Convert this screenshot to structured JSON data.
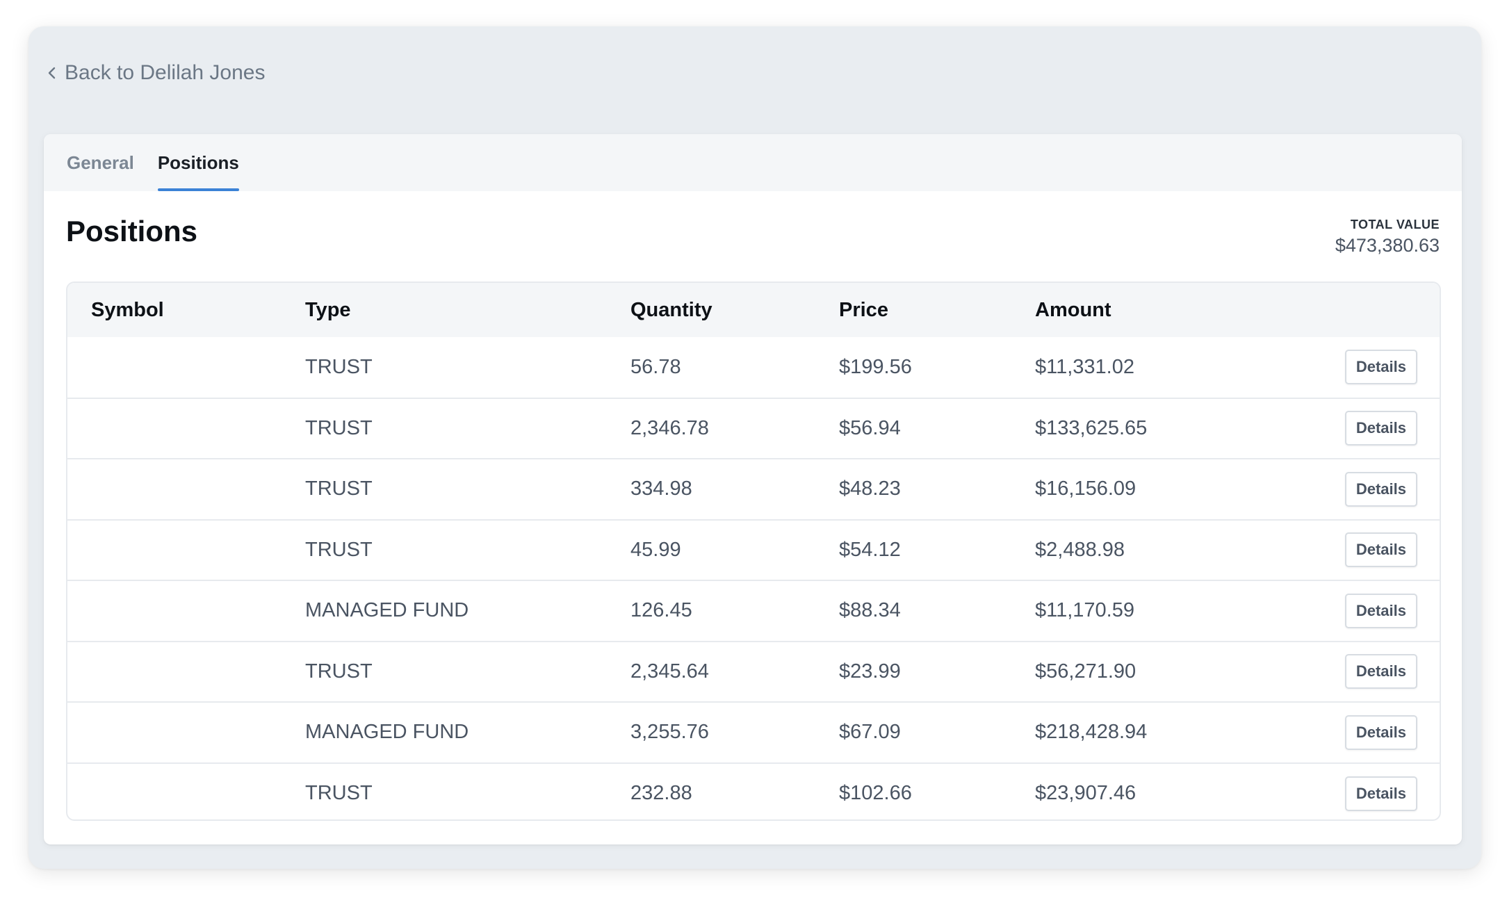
{
  "back_link": {
    "label": "Back to Delilah Jones",
    "icon": "chevron-left-icon"
  },
  "tabs": [
    {
      "label": "General",
      "active": false
    },
    {
      "label": "Positions",
      "active": true
    }
  ],
  "header": {
    "title": "Positions",
    "total_label": "TOTAL VALUE",
    "total_value": "$473,380.63"
  },
  "table": {
    "columns": [
      "Symbol",
      "Type",
      "Quantity",
      "Price",
      "Amount"
    ],
    "action_label": "Details",
    "rows": [
      {
        "symbol": "",
        "type": "TRUST",
        "quantity": "56.78",
        "price": "$199.56",
        "amount": "$11,331.02"
      },
      {
        "symbol": "",
        "type": "TRUST",
        "quantity": "2,346.78",
        "price": "$56.94",
        "amount": "$133,625.65"
      },
      {
        "symbol": "",
        "type": "TRUST",
        "quantity": "334.98",
        "price": "$48.23",
        "amount": "$16,156.09"
      },
      {
        "symbol": "",
        "type": "TRUST",
        "quantity": "45.99",
        "price": "$54.12",
        "amount": "$2,488.98"
      },
      {
        "symbol": "",
        "type": "MANAGED FUND",
        "quantity": "126.45",
        "price": "$88.34",
        "amount": "$11,170.59"
      },
      {
        "symbol": "",
        "type": "TRUST",
        "quantity": "2,345.64",
        "price": "$23.99",
        "amount": "$56,271.90"
      },
      {
        "symbol": "",
        "type": "MANAGED FUND",
        "quantity": "3,255.76",
        "price": "$67.09",
        "amount": "$218,428.94"
      },
      {
        "symbol": "",
        "type": "TRUST",
        "quantity": "232.88",
        "price": "$102.66",
        "amount": "$23,907.46"
      }
    ]
  },
  "colors": {
    "accent": "#3b82d6",
    "background": "#e9edf1",
    "card": "#ffffff",
    "muted_text": "#6b7785"
  }
}
